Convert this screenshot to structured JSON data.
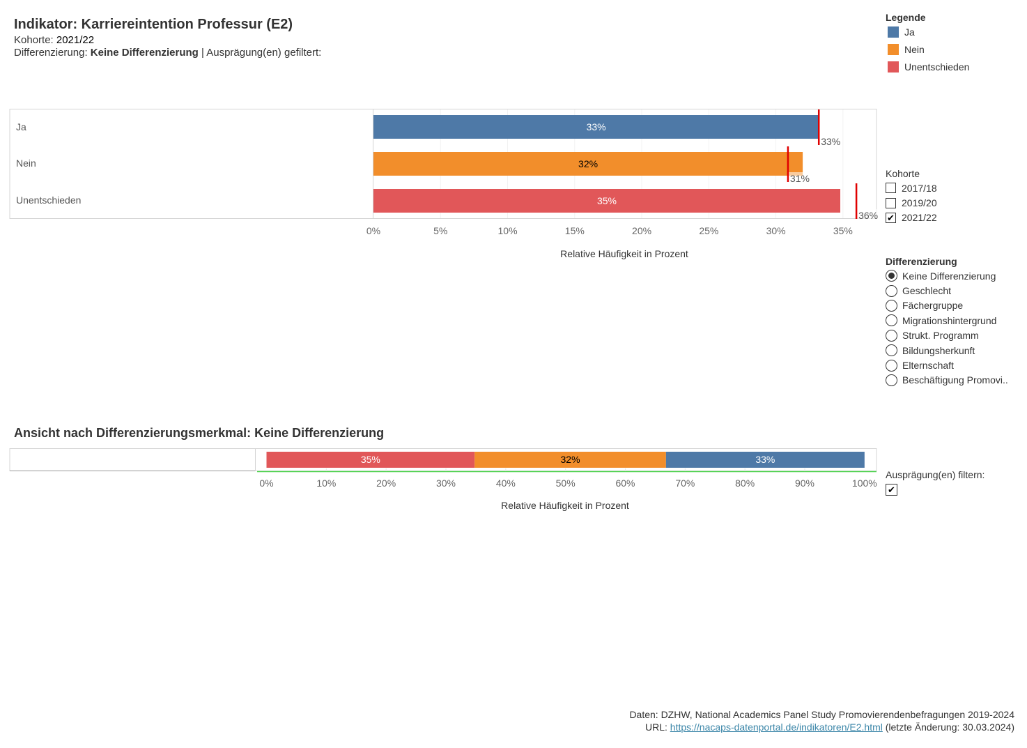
{
  "header": {
    "title": "Indikator: Karriereintention Professur (E2)",
    "kohorte_label": "Kohorte: ",
    "kohorte_value": "2021/22",
    "diff_label": "Differenzierung: ",
    "diff_value": "Keine Differenzierung",
    "diff_suffix": " | Ausprägung(en) gefiltert:"
  },
  "legend": {
    "title": "Legende",
    "items": [
      {
        "label": "Ja",
        "color": "#4e79a7"
      },
      {
        "label": "Nein",
        "color": "#f28e2b"
      },
      {
        "label": "Unentschieden",
        "color": "#e15759"
      }
    ]
  },
  "filters": {
    "kohorte": {
      "title": "Kohorte",
      "options": [
        {
          "label": "2017/18",
          "checked": false
        },
        {
          "label": "2019/20",
          "checked": false
        },
        {
          "label": "2021/22",
          "checked": true
        }
      ]
    },
    "differenzierung": {
      "title": "Differenzierung",
      "options": [
        {
          "label": "Keine Differenzierung",
          "selected": true
        },
        {
          "label": "Geschlecht",
          "selected": false
        },
        {
          "label": "Fächergruppe",
          "selected": false
        },
        {
          "label": "Migrationshintergrund",
          "selected": false
        },
        {
          "label": "Strukt. Programm",
          "selected": false
        },
        {
          "label": "Bildungsherkunft",
          "selected": false
        },
        {
          "label": "Elternschaft",
          "selected": false
        },
        {
          "label": "Beschäftigung Promovi.."
        }
      ]
    },
    "auspraegung": {
      "label": "Ausprägung(en) filtern:",
      "checked": true
    }
  },
  "section2": {
    "title": "Ansicht nach Differenzierungsmerkmal: Keine Differenzierung"
  },
  "footer": {
    "line1": "Daten: DZHW, National Academics Panel Study Promovierendenbefragungen 2019-2024",
    "url_prefix": "URL: ",
    "url": "https://nacaps-datenportal.de/indikatoren/E2.html",
    "url_suffix": " (letzte Änderung: 30.03.2024)"
  },
  "chart_data": [
    {
      "type": "bar",
      "orientation": "horizontal",
      "categories": [
        "Ja",
        "Nein",
        "Unentschieden"
      ],
      "values": [
        33.2,
        32.0,
        34.8
      ],
      "value_labels": [
        "33%",
        "32%",
        "35%"
      ],
      "reference_values": [
        33.2,
        30.9,
        36.0
      ],
      "reference_labels": [
        "33%",
        "31%",
        "36%"
      ],
      "colors": [
        "#4e79a7",
        "#f28e2b",
        "#e15759"
      ],
      "label_colors": [
        "#ffffff",
        "#000000",
        "#ffffff"
      ],
      "xlabel": "Relative Häufigkeit in Prozent",
      "xlim": [
        0,
        37.5
      ],
      "xticks": [
        0,
        5,
        10,
        15,
        20,
        25,
        30,
        35
      ],
      "xtick_labels": [
        "0%",
        "5%",
        "10%",
        "15%",
        "20%",
        "25%",
        "30%",
        "35%"
      ]
    },
    {
      "type": "bar",
      "orientation": "horizontal",
      "stacked": true,
      "segments": [
        {
          "category": "Unentschieden",
          "value": 34.8,
          "label": "35%",
          "color": "#e15759",
          "label_color": "#ffffff"
        },
        {
          "category": "Nein",
          "value": 32.0,
          "label": "32%",
          "color": "#f28e2b",
          "label_color": "#000000"
        },
        {
          "category": "Ja",
          "value": 33.2,
          "label": "33%",
          "color": "#4e79a7",
          "label_color": "#ffffff"
        }
      ],
      "xlabel": "Relative Häufigkeit in Prozent",
      "xlim": [
        0,
        102
      ],
      "xticks": [
        0,
        10,
        20,
        30,
        40,
        50,
        60,
        70,
        80,
        90,
        100
      ],
      "xtick_labels": [
        "0%",
        "10%",
        "20%",
        "30%",
        "40%",
        "50%",
        "60%",
        "70%",
        "80%",
        "90%",
        "100%"
      ]
    }
  ]
}
